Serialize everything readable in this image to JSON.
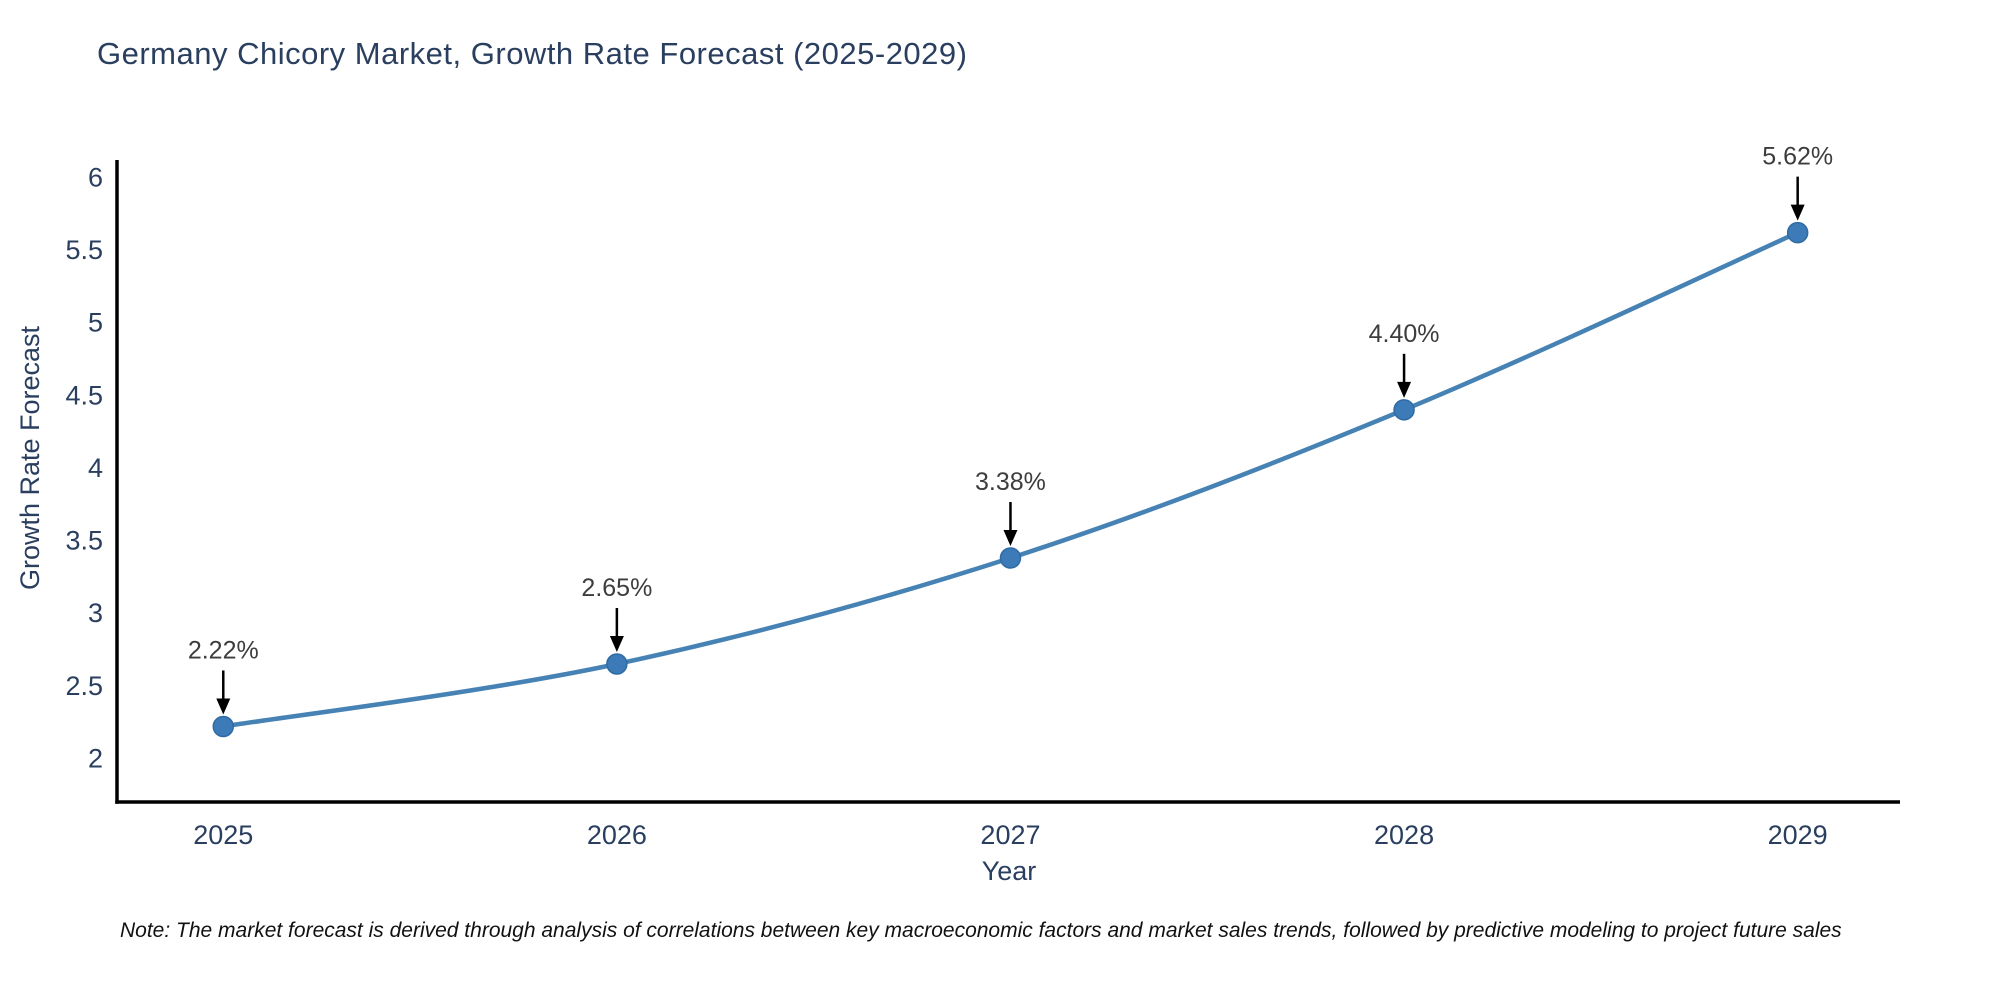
{
  "page": {
    "note": "Note: The market forecast is derived through analysis of correlations between key macroeconomic factors and market sales trends, followed by predictive modeling to project future sales"
  },
  "chart_data": {
    "type": "line",
    "title": "Germany Chicory Market, Growth Rate Forecast (2025-2029)",
    "xlabel": "Year",
    "ylabel": "Growth Rate Forecast",
    "x": [
      2025,
      2026,
      2027,
      2028,
      2029
    ],
    "series": [
      {
        "name": "Growth Rate Forecast",
        "values": [
          2.22,
          2.65,
          3.38,
          4.4,
          5.62
        ]
      }
    ],
    "point_labels": [
      "2.22%",
      "2.65%",
      "3.38%",
      "4.40%",
      "5.62%"
    ],
    "xtick_labels": [
      "2025",
      "2026",
      "2027",
      "2028",
      "2029"
    ],
    "ytick_values": [
      2,
      2.5,
      3,
      3.5,
      4,
      4.5,
      5,
      5.5,
      6
    ],
    "ytick_labels": [
      "2",
      "2.5",
      "3",
      "3.5",
      "4",
      "4.5",
      "5",
      "5.5",
      "6"
    ],
    "xlim": [
      2024.73,
      2029.26
    ],
    "ylim": [
      1.7,
      6.12
    ],
    "grid": false,
    "legend": "none",
    "line_shape": "spline",
    "annotation_style": "arrow-down-to-point",
    "colors": {
      "line": "#4682b4",
      "marker": "#3c7bb8",
      "marker_edge": "#2f6ba3",
      "axis": "#000000",
      "text": "#2a3f5f",
      "annotation_text": "#3d3d3d",
      "arrow": "#000000",
      "background": "#ffffff"
    }
  }
}
